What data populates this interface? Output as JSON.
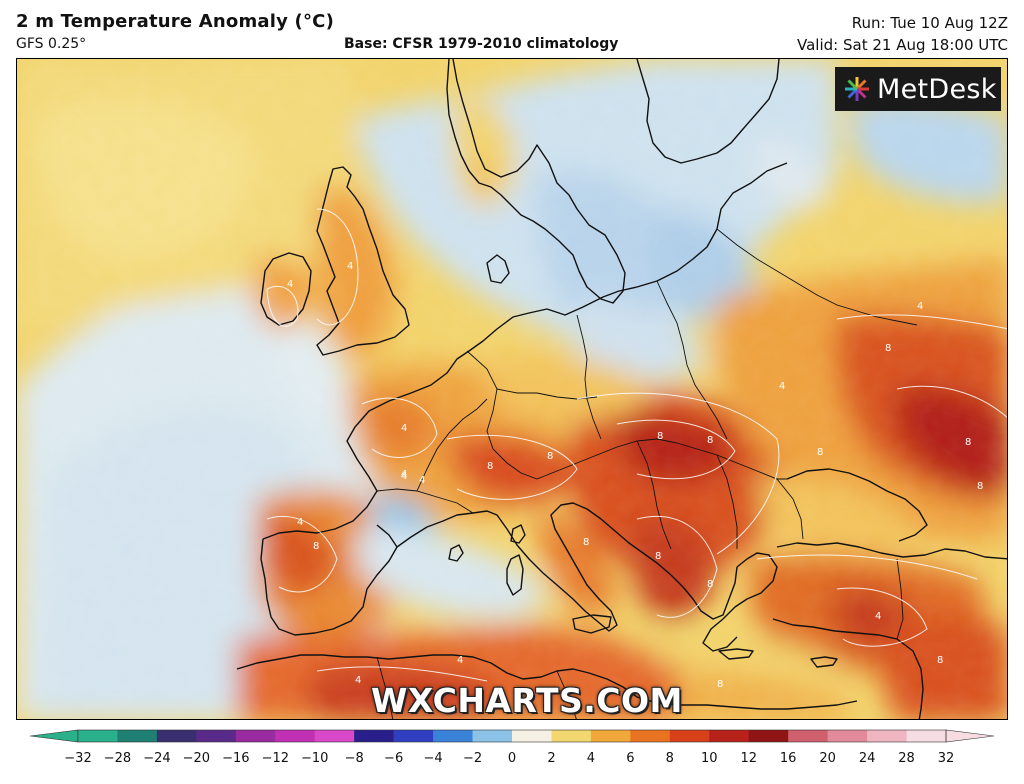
{
  "header": {
    "title": "2 m Temperature Anomaly (°C)",
    "model": "GFS 0.25°",
    "base": "Base: CFSR 1979-2010 climatology",
    "run": "Run: Tue 10 Aug 12Z",
    "valid": "Valid: Sat 21 Aug 18:00 UTC"
  },
  "branding": {
    "logo_text": "MetDesk",
    "watermark": "WXCHARTS.COM"
  },
  "colorbar": {
    "labels": [
      "−32",
      "−28",
      "−24",
      "−20",
      "−16",
      "−12",
      "−10",
      "−8",
      "−6",
      "−4",
      "−2",
      "0",
      "2",
      "4",
      "6",
      "8",
      "10",
      "12",
      "16",
      "20",
      "24",
      "28",
      "32"
    ],
    "colors": [
      "#2ab08a",
      "#1f7f73",
      "#3a2f6e",
      "#5a2a8a",
      "#9a2aa0",
      "#c02fb4",
      "#d848c8",
      "#2a1e8a",
      "#2f3fc0",
      "#3a82d8",
      "#8cc2e8",
      "#f4f1e4",
      "#f3d76f",
      "#f0a83a",
      "#e87422",
      "#d8401a",
      "#b8201a",
      "#901414",
      "#d0606e",
      "#e38a9a",
      "#efb5c0",
      "#f7dde3"
    ]
  },
  "map": {
    "contour_labels": [
      "4",
      "4",
      "4",
      "4",
      "4",
      "8",
      "8",
      "8",
      "8",
      "8",
      "4",
      "4",
      "8",
      "4",
      "8",
      "4",
      "8",
      "8",
      "4",
      "8",
      "8",
      "8",
      "8",
      "4",
      "4",
      "8"
    ]
  }
}
